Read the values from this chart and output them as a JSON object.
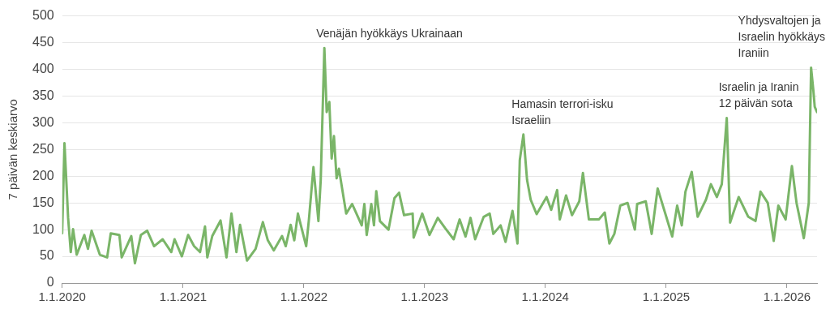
{
  "chart_data": {
    "type": "line",
    "ylabel": "7 päivän keskiarvo",
    "x": [
      "2020-01-01",
      "2020-01-08",
      "2020-01-19",
      "2020-01-27",
      "2020-02-03",
      "2020-02-14",
      "2020-03-08",
      "2020-03-19",
      "2020-03-30",
      "2020-04-24",
      "2020-05-16",
      "2020-05-27",
      "2020-06-22",
      "2020-06-29",
      "2020-07-28",
      "2020-08-08",
      "2020-08-26",
      "2020-09-14",
      "2020-10-05",
      "2020-10-31",
      "2020-11-26",
      "2020-12-06",
      "2020-12-28",
      "2021-01-16",
      "2021-02-03",
      "2021-02-21",
      "2021-03-08",
      "2021-03-15",
      "2021-03-30",
      "2021-04-24",
      "2021-05-12",
      "2021-05-27",
      "2021-06-11",
      "2021-06-22",
      "2021-07-13",
      "2021-08-08",
      "2021-08-30",
      "2021-09-14",
      "2021-10-02",
      "2021-10-27",
      "2021-11-07",
      "2021-11-22",
      "2021-12-03",
      "2021-12-14",
      "2022-01-08",
      "2022-01-16",
      "2022-01-30",
      "2022-02-14",
      "2022-02-21",
      "2022-03-04",
      "2022-03-11",
      "2022-03-19",
      "2022-03-26",
      "2022-04-02",
      "2022-04-10",
      "2022-04-17",
      "2022-05-09",
      "2022-05-27",
      "2022-06-25",
      "2022-07-03",
      "2022-07-10",
      "2022-07-24",
      "2022-08-01",
      "2022-08-08",
      "2022-08-19",
      "2022-09-14",
      "2022-10-02",
      "2022-10-16",
      "2022-10-31",
      "2022-11-26",
      "2022-11-29",
      "2022-12-25",
      "2023-01-16",
      "2023-02-10",
      "2023-03-04",
      "2023-03-30",
      "2023-04-17",
      "2023-05-05",
      "2023-05-20",
      "2023-06-03",
      "2023-06-29",
      "2023-07-17",
      "2023-07-28",
      "2023-08-19",
      "2023-09-03",
      "2023-09-24",
      "2023-10-09",
      "2023-10-16",
      "2023-10-27",
      "2023-11-07",
      "2023-11-18",
      "2023-12-06",
      "2024-01-05",
      "2024-01-19",
      "2024-02-06",
      "2024-02-14",
      "2024-03-04",
      "2024-03-22",
      "2024-04-13",
      "2024-04-24",
      "2024-05-12",
      "2024-06-11",
      "2024-06-29",
      "2024-07-13",
      "2024-07-28",
      "2024-08-15",
      "2024-09-06",
      "2024-09-28",
      "2024-10-05",
      "2024-10-31",
      "2024-11-18",
      "2024-12-06",
      "2025-01-01",
      "2025-01-19",
      "2025-02-03",
      "2025-02-17",
      "2025-02-28",
      "2025-03-19",
      "2025-04-06",
      "2025-05-01",
      "2025-05-16",
      "2025-06-03",
      "2025-06-18",
      "2025-07-03",
      "2025-07-13",
      "2025-08-08",
      "2025-09-06",
      "2025-09-28",
      "2025-10-13",
      "2025-11-04",
      "2025-11-22",
      "2025-12-06",
      "2025-12-28",
      "2026-01-16",
      "2026-01-30",
      "2026-02-21",
      "2026-03-08",
      "2026-03-15",
      "2026-03-22",
      "2026-03-26",
      "2026-04-02"
    ],
    "series": [
      {
        "color": "#7ab568",
        "values": [
          93,
          262,
          122,
          58,
          101,
          53,
          90,
          64,
          98,
          53,
          48,
          93,
          90,
          48,
          88,
          37,
          90,
          98,
          69,
          82,
          58,
          82,
          50,
          90,
          69,
          58,
          106,
          48,
          88,
          117,
          48,
          130,
          58,
          109,
          42,
          64,
          114,
          80,
          61,
          88,
          69,
          109,
          80,
          130,
          69,
          117,
          217,
          116,
          193,
          440,
          320,
          339,
          233,
          275,
          196,
          214,
          130,
          148,
          108,
          148,
          90,
          148,
          108,
          172,
          116,
          100,
          159,
          169,
          127,
          130,
          85,
          130,
          90,
          122,
          103,
          82,
          119,
          87,
          122,
          82,
          124,
          130,
          92,
          108,
          77,
          135,
          74,
          230,
          278,
          193,
          156,
          129,
          161,
          137,
          174,
          119,
          164,
          127,
          153,
          206,
          119,
          119,
          132,
          74,
          92,
          145,
          150,
          100,
          148,
          153,
          92,
          177,
          124,
          87,
          145,
          108,
          171,
          208,
          124,
          156,
          185,
          161,
          185,
          309,
          113,
          161,
          124,
          116,
          171,
          150,
          79,
          145,
          119,
          219,
          150,
          84,
          150,
          403,
          360,
          330,
          320
        ]
      }
    ],
    "xlim": [
      "2020-01-01",
      "2026-04-02"
    ],
    "xticks": [
      {
        "value": "2020-01-01",
        "label": "1.1.2020"
      },
      {
        "value": "2021-01-01",
        "label": "1.1.2021"
      },
      {
        "value": "2022-01-01",
        "label": "1.1.2022"
      },
      {
        "value": "2023-01-01",
        "label": "1.1.2023"
      },
      {
        "value": "2024-01-01",
        "label": "1.1.2024"
      },
      {
        "value": "2025-01-01",
        "label": "1.1.2025"
      },
      {
        "value": "2026-01-01",
        "label": "1.1.2026"
      }
    ],
    "ylim": [
      0,
      500
    ],
    "yticks": [
      0,
      50,
      100,
      150,
      200,
      250,
      300,
      350,
      400,
      450,
      500
    ],
    "grid": "y",
    "legend": false,
    "marker": "none",
    "line_style": "solid",
    "annotations": [
      {
        "text": "Venäjän hyökkäys Ukrainaan",
        "x": "2022-03-04",
        "y": 440
      },
      {
        "text": "Hamasin terrori-isku\nIsraeliin",
        "x": "2023-10-16",
        "y": 278
      },
      {
        "text": "Israelin ja Iranin\n12 päivän sota",
        "x": "2025-07-03",
        "y": 309
      },
      {
        "text": "Yhdysvaltojen ja\nIsraelin hyökkäys\nIraniin",
        "x": "2026-03-15",
        "y": 403
      }
    ]
  }
}
